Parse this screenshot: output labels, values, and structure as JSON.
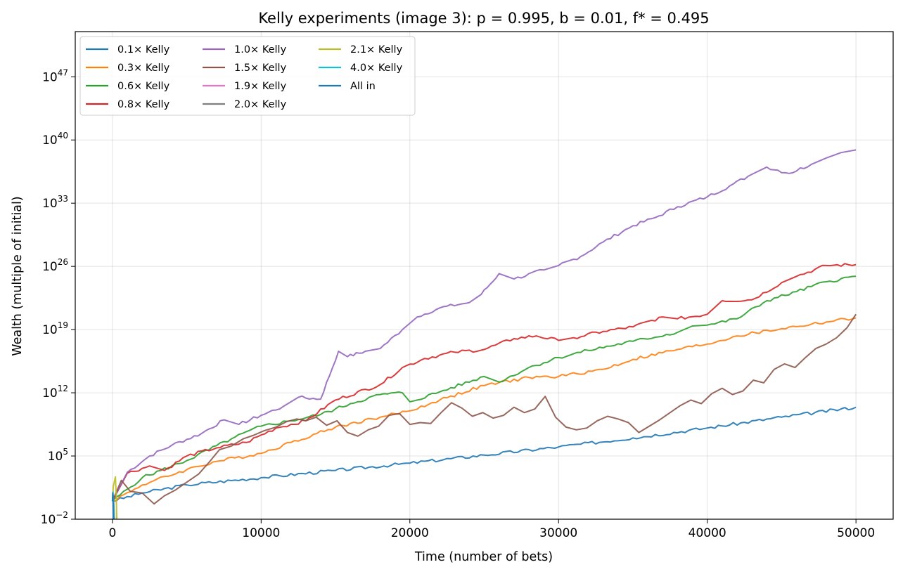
{
  "chart_data": {
    "type": "line",
    "title": "Kelly experiments (image 3): p = 0.995, b = 0.01, f* = 0.495",
    "xlabel": "Time (number of bets)",
    "ylabel": "Wealth (multiple of initial)",
    "xlim": [
      -2500,
      52500
    ],
    "ylim_log10": [
      -2,
      52
    ],
    "y_scale": "log",
    "grid": true,
    "legend_placement": "top-left",
    "legend_columns": 3,
    "x_ticks": [
      {
        "value": 0,
        "label": "0"
      },
      {
        "value": 10000,
        "label": "10000"
      },
      {
        "value": 20000,
        "label": "20000"
      },
      {
        "value": 30000,
        "label": "30000"
      },
      {
        "value": 40000,
        "label": "40000"
      },
      {
        "value": 50000,
        "label": "50000"
      }
    ],
    "y_ticks": [
      {
        "log10": -2,
        "base": "10",
        "exp": "−2"
      },
      {
        "log10": 5,
        "base": "10",
        "exp": "5"
      },
      {
        "log10": 12,
        "base": "10",
        "exp": "12"
      },
      {
        "log10": 19,
        "base": "10",
        "exp": "19"
      },
      {
        "log10": 26,
        "base": "10",
        "exp": "26"
      },
      {
        "log10": 33,
        "base": "10",
        "exp": "33"
      },
      {
        "log10": 40,
        "base": "10",
        "exp": "40"
      },
      {
        "log10": 47,
        "base": "10",
        "exp": "47"
      }
    ],
    "series": [
      {
        "name": "0.1× Kelly",
        "color": "#1f77b4",
        "x": [
          0,
          2000,
          5000,
          10000,
          15000,
          20000,
          25000,
          30000,
          35000,
          40000,
          45000,
          50000
        ],
        "log10_wealth": [
          0,
          0.9,
          1.8,
          2.6,
          3.4,
          4.2,
          5.1,
          6.0,
          7.0,
          8.1,
          9.3,
          10.4
        ]
      },
      {
        "name": "0.3× Kelly",
        "color": "#ff7f0e",
        "x": [
          0,
          2000,
          5000,
          7000,
          10000,
          12000,
          15000,
          18000,
          20000,
          22000,
          25000,
          28000,
          30000,
          33000,
          35000,
          38000,
          40000,
          42000,
          45000,
          47000,
          50000
        ],
        "log10_wealth": [
          0,
          1.8,
          3.5,
          4.4,
          5.3,
          6.5,
          8.2,
          9.3,
          10.0,
          11.2,
          12.8,
          13.7,
          13.8,
          14.6,
          15.7,
          16.8,
          17.4,
          18.3,
          19.1,
          19.6,
          20.3
        ]
      },
      {
        "name": "0.6× Kelly",
        "color": "#2ca02c",
        "x": [
          0,
          2000,
          5000,
          8000,
          10000,
          12000,
          14000,
          16000,
          18000,
          19500,
          20000,
          22000,
          25000,
          26000,
          28000,
          30000,
          32000,
          35000,
          38000,
          39000,
          40000,
          42000,
          44000,
          46000,
          48000,
          50000
        ],
        "log10_wealth": [
          0,
          2.6,
          4.5,
          6.9,
          8.3,
          8.9,
          9.6,
          10.8,
          11.8,
          12.0,
          11.0,
          12.1,
          13.8,
          13.2,
          14.8,
          15.9,
          16.7,
          17.7,
          18.7,
          19.4,
          19.5,
          20.2,
          22.2,
          23.2,
          24.3,
          24.9
        ]
      },
      {
        "name": "0.8× Kelly",
        "color": "#d62728",
        "x": [
          0,
          1000,
          2500,
          3500,
          5000,
          7000,
          9000,
          11000,
          13000,
          15000,
          18000,
          19500,
          21000,
          23000,
          25000,
          27000,
          28500,
          30000,
          31000,
          33000,
          35000,
          37000,
          38000,
          40000,
          41000,
          43000,
          45000,
          46000,
          48000,
          50000
        ],
        "log10_wealth": [
          0,
          3.1,
          3.9,
          3.4,
          5.0,
          5.9,
          6.5,
          8.1,
          8.9,
          11.2,
          12.9,
          14.8,
          15.8,
          16.5,
          16.8,
          18.0,
          18.3,
          17.8,
          18.1,
          18.8,
          19.3,
          20.4,
          20.2,
          20.7,
          22.2,
          22.3,
          24.2,
          24.9,
          26.1,
          26.2
        ]
      },
      {
        "name": "1.0× Kelly",
        "color": "#9467bd",
        "x": [
          0,
          1000,
          2500,
          4000,
          6000,
          7500,
          8500,
          10000,
          11500,
          12500,
          14000,
          15200,
          15800,
          17000,
          18000,
          19500,
          20500,
          22000,
          24000,
          24800,
          26000,
          27000,
          29000,
          30000,
          31500,
          33000,
          35000,
          36500,
          38000,
          40000,
          41500,
          43000,
          44000,
          45500,
          47000,
          48000,
          49000,
          50000
        ],
        "log10_wealth": [
          0,
          3.2,
          5.0,
          6.2,
          7.5,
          9.0,
          8.5,
          9.5,
          10.5,
          11.5,
          11.3,
          16.6,
          16.0,
          16.6,
          16.9,
          19.0,
          20.4,
          21.4,
          22.0,
          22.9,
          25.2,
          24.6,
          25.6,
          26.1,
          27.1,
          28.7,
          30.5,
          31.4,
          32.6,
          33.7,
          34.9,
          36.2,
          37.0,
          36.3,
          37.3,
          38.0,
          38.6,
          38.9
        ]
      },
      {
        "name": "1.5× Kelly",
        "color": "#8c564b",
        "x": [
          0,
          600,
          1200,
          2000,
          2800,
          3500,
          4200,
          5000,
          5800,
          6500,
          7200,
          8000,
          8800,
          9500,
          10200,
          11000,
          11700,
          12400,
          13000,
          13700,
          14400,
          15100,
          15800,
          16500,
          17200,
          17900,
          18600,
          19300,
          20000,
          20700,
          21400,
          22100,
          22800,
          23500,
          24200,
          24900,
          25600,
          26300,
          27000,
          27700,
          28400,
          29100,
          29800,
          30500,
          31200,
          31900,
          32600,
          33300,
          34000,
          34700,
          35400,
          36100,
          36800,
          37500,
          38200,
          38900,
          39600,
          40300,
          41000,
          41700,
          42400,
          43100,
          43800,
          44500,
          45200,
          45900,
          46600,
          47300,
          48000,
          48700,
          49400,
          50000
        ],
        "log10_wealth": [
          0,
          2.3,
          1.1,
          0.9,
          -0.3,
          0.6,
          1.2,
          2.1,
          3.0,
          4.3,
          5.7,
          6.1,
          6.9,
          7.3,
          7.8,
          8.2,
          8.8,
          9.1,
          8.9,
          9.3,
          8.4,
          8.9,
          7.6,
          7.2,
          7.9,
          8.3,
          9.5,
          9.7,
          8.5,
          8.7,
          8.6,
          9.8,
          10.9,
          10.3,
          9.4,
          9.8,
          9.2,
          9.5,
          10.4,
          9.8,
          10.2,
          11.6,
          9.3,
          8.2,
          7.9,
          8.1,
          8.9,
          9.4,
          9.1,
          8.7,
          7.6,
          8.3,
          9.0,
          9.8,
          10.6,
          11.2,
          10.8,
          11.9,
          12.5,
          11.8,
          12.2,
          13.4,
          13.1,
          14.6,
          15.2,
          14.8,
          15.9,
          16.9,
          17.4,
          18.1,
          19.2,
          20.7
        ]
      },
      {
        "name": "1.9× Kelly",
        "color": "#e377c2",
        "x": [
          0,
          50,
          100,
          150
        ],
        "log10_wealth": [
          0,
          0.5,
          -0.8,
          -2.5
        ]
      },
      {
        "name": "2.0× Kelly",
        "color": "#7f7f7f",
        "x": [
          0,
          50,
          100,
          150
        ],
        "log10_wealth": [
          0,
          0.7,
          -0.5,
          -2.5
        ]
      },
      {
        "name": "2.1× Kelly",
        "color": "#bcbd22",
        "x": [
          0,
          60,
          120,
          200,
          260,
          300
        ],
        "log10_wealth": [
          0,
          1.6,
          2.1,
          2.7,
          0.4,
          -2.5
        ]
      },
      {
        "name": "4.0× Kelly",
        "color": "#17becf",
        "x": [
          0,
          40,
          80,
          110
        ],
        "log10_wealth": [
          0,
          1.0,
          -0.6,
          -2.5
        ]
      },
      {
        "name": "All in",
        "color": "#1f77b4",
        "x": [
          0,
          20,
          40,
          60
        ],
        "log10_wealth": [
          0,
          0.9,
          0.3,
          -2.5
        ]
      }
    ]
  }
}
